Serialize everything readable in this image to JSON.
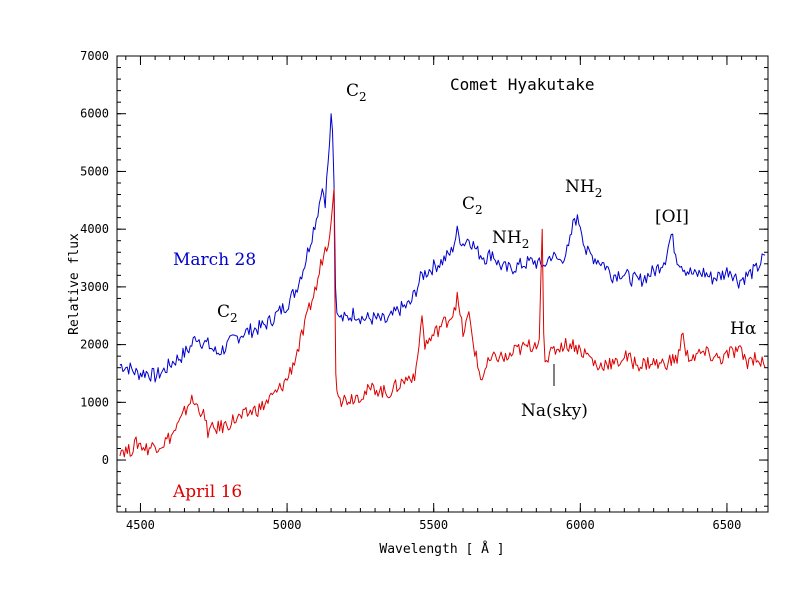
{
  "chart_data": {
    "type": "line",
    "title": "Comet Hyakutake",
    "xlabel": "Wavelength [ Å ]",
    "ylabel": "Relative flux",
    "xlim": [
      4420,
      6640
    ],
    "ylim": [
      -900,
      7000
    ],
    "xticks": [
      "4500",
      "5000",
      "5500",
      "6000",
      "6500"
    ],
    "yticks": [
      "0",
      "1000",
      "2000",
      "3000",
      "4000",
      "5000",
      "6000",
      "7000"
    ],
    "series": [
      {
        "name": "March 28",
        "color": "#0000cc",
        "x": [
          4430,
          4460,
          4490,
          4520,
          4550,
          4580,
          4610,
          4640,
          4670,
          4690,
          4710,
          4730,
          4760,
          4790,
          4820,
          4850,
          4880,
          4910,
          4940,
          4970,
          5000,
          5030,
          5060,
          5080,
          5100,
          5120,
          5130,
          5145,
          5150,
          5155,
          5160,
          5165,
          5170,
          5175,
          5185,
          5200,
          5230,
          5260,
          5300,
          5340,
          5380,
          5420,
          5460,
          5500,
          5530,
          5560,
          5580,
          5600,
          5620,
          5650,
          5680,
          5700,
          5720,
          5750,
          5780,
          5810,
          5840,
          5870,
          5880,
          5900,
          5930,
          5960,
          5980,
          6000,
          6020,
          6050,
          6080,
          6110,
          6140,
          6170,
          6200,
          6230,
          6260,
          6290,
          6310,
          6330,
          6360,
          6390,
          6420,
          6450,
          6480,
          6510,
          6540,
          6570,
          6600,
          6630
        ],
        "y": [
          1650,
          1600,
          1500,
          1520,
          1450,
          1550,
          1700,
          1800,
          1950,
          2150,
          2050,
          2000,
          1850,
          1950,
          2100,
          2200,
          2250,
          2300,
          2400,
          2550,
          2700,
          2950,
          3400,
          3800,
          4200,
          4700,
          4500,
          5500,
          6000,
          5700,
          4800,
          3000,
          2550,
          2500,
          2450,
          2450,
          2550,
          2450,
          2450,
          2400,
          2600,
          2700,
          3200,
          3350,
          3450,
          3600,
          3950,
          3750,
          3850,
          3600,
          3500,
          3600,
          3400,
          3300,
          3350,
          3400,
          3450,
          3350,
          3400,
          3550,
          3450,
          3650,
          4200,
          4100,
          3600,
          3500,
          3400,
          3200,
          3250,
          3150,
          3100,
          3200,
          3300,
          3500,
          3900,
          3500,
          3300,
          3200,
          3250,
          3150,
          3200,
          3300,
          3100,
          3200,
          3300,
          3550
        ]
      },
      {
        "name": "April 16",
        "color": "#dd0000",
        "x": [
          4430,
          4460,
          4490,
          4520,
          4550,
          4580,
          4610,
          4640,
          4670,
          4690,
          4710,
          4730,
          4760,
          4790,
          4820,
          4850,
          4880,
          4910,
          4940,
          4970,
          5000,
          5030,
          5060,
          5080,
          5100,
          5120,
          5140,
          5155,
          5160,
          5163,
          5166,
          5170,
          5175,
          5185,
          5200,
          5230,
          5260,
          5300,
          5340,
          5380,
          5420,
          5440,
          5460,
          5470,
          5490,
          5520,
          5560,
          5580,
          5600,
          5620,
          5640,
          5660,
          5690,
          5720,
          5750,
          5780,
          5810,
          5840,
          5860,
          5870,
          5875,
          5880,
          5890,
          5910,
          5940,
          5980,
          6000,
          6030,
          6060,
          6090,
          6120,
          6150,
          6180,
          6210,
          6240,
          6270,
          6300,
          6330,
          6350,
          6360,
          6390,
          6420,
          6450,
          6480,
          6510,
          6540,
          6570,
          6600,
          6630
        ],
        "y": [
          200,
          150,
          300,
          200,
          250,
          300,
          450,
          700,
          1050,
          950,
          850,
          500,
          550,
          600,
          700,
          750,
          850,
          900,
          1050,
          1200,
          1400,
          1800,
          2300,
          2700,
          3000,
          3500,
          3800,
          4400,
          4700,
          2900,
          1500,
          1200,
          1100,
          1050,
          1050,
          1100,
          1150,
          1250,
          1150,
          1300,
          1450,
          1500,
          2500,
          2000,
          2100,
          2300,
          2500,
          2800,
          2200,
          2500,
          1900,
          1400,
          1700,
          1800,
          1750,
          1900,
          1950,
          2000,
          2100,
          4000,
          2200,
          1700,
          1750,
          1900,
          2000,
          2000,
          1900,
          1800,
          1600,
          1700,
          1650,
          1800,
          1700,
          1650,
          1700,
          1650,
          1700,
          1750,
          2200,
          1800,
          1800,
          1850,
          1800,
          1750,
          1850,
          1900,
          1700,
          1800,
          1600
        ]
      }
    ],
    "annotations": {
      "c2_blue_4700": "C",
      "c2_peak": "C",
      "c2_5600": "C",
      "nh2_5700": "NH",
      "nh2_6000": "NH",
      "oi": "[OI]",
      "halpha": "Hα",
      "na_sky": "Na(sky)",
      "c2_sub": "2",
      "nh2_sub": "2"
    }
  }
}
